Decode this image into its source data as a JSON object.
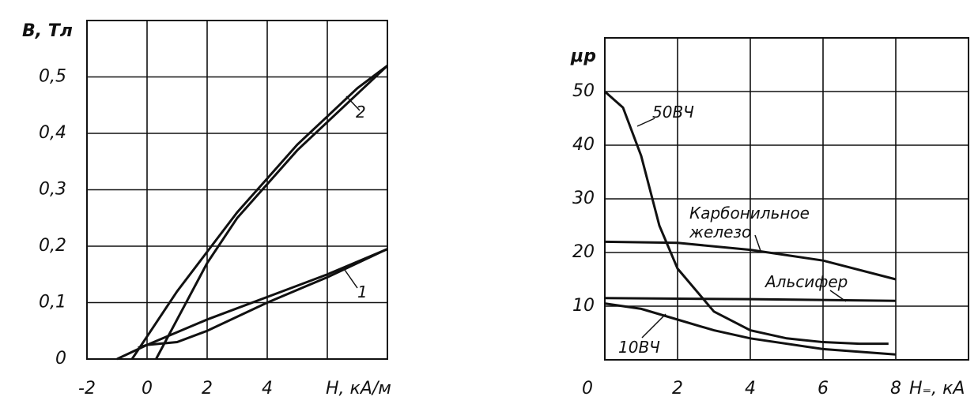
{
  "chart_data": [
    {
      "type": "line",
      "y_label": "B, Тл",
      "x_label": "H, кА/м",
      "xlim": [
        -2,
        8
      ],
      "ylim": [
        0,
        0.6
      ],
      "xticks": [
        -2,
        0,
        2,
        4
      ],
      "xgrid": [
        -2,
        0,
        2,
        4,
        6,
        8
      ],
      "yticks": [
        0,
        {
          "value": 0.1,
          "label": "0,1"
        },
        {
          "value": 0.2,
          "label": "0,2"
        },
        {
          "value": 0.3,
          "label": "0,3"
        },
        {
          "value": 0.4,
          "label": "0,4"
        },
        {
          "value": 0.5,
          "label": "0,5"
        }
      ],
      "grid": true,
      "series": [
        {
          "name": "2",
          "color": "#111111",
          "x": [
            -0.5,
            0,
            1,
            2,
            3,
            4,
            5,
            6,
            7,
            8
          ],
          "values": [
            0,
            0.04,
            0.12,
            0.19,
            0.26,
            0.32,
            0.38,
            0.43,
            0.48,
            0.52
          ]
        },
        {
          "color": "#111111",
          "x": [
            0.3,
            1,
            2,
            3,
            4,
            5,
            6,
            7,
            8
          ],
          "values": [
            0,
            0.07,
            0.17,
            0.25,
            0.31,
            0.37,
            0.42,
            0.47,
            0.52
          ]
        },
        {
          "name": "1",
          "color": "#111111",
          "x": [
            -1,
            0,
            2,
            4,
            6,
            8
          ],
          "values": [
            0,
            0.025,
            0.07,
            0.11,
            0.15,
            0.195
          ]
        },
        {
          "color": "#111111",
          "x": [
            -0.3,
            0,
            1,
            2,
            4,
            6,
            8
          ],
          "values": [
            0.02,
            0.025,
            0.03,
            0.05,
            0.1,
            0.145,
            0.195
          ]
        }
      ]
    },
    {
      "type": "line",
      "y_label": "μp",
      "x_label": "H₌, кА",
      "xlim": [
        0,
        10
      ],
      "ylim": [
        0,
        60
      ],
      "xticks": [
        0,
        2,
        4,
        6,
        8
      ],
      "xgrid": [
        0,
        2,
        4,
        6,
        8,
        10
      ],
      "yticks": [
        10,
        20,
        30,
        40,
        50
      ],
      "grid": true,
      "series": [
        {
          "name": "50ВЧ",
          "color": "#111111",
          "x": [
            0,
            0.5,
            1,
            1.5,
            2,
            3,
            4,
            5,
            6,
            7,
            7.8
          ],
          "values": [
            50,
            47,
            38,
            25,
            17,
            9,
            5.5,
            4,
            3.3,
            3,
            3
          ]
        },
        {
          "name": "Карбонильное железо",
          "color": "#111111",
          "x": [
            0,
            2,
            4,
            6,
            8
          ],
          "values": [
            22,
            21.8,
            20.5,
            18.5,
            15
          ]
        },
        {
          "name": "Альсифер",
          "color": "#111111",
          "x": [
            0,
            4,
            8
          ],
          "values": [
            11.5,
            11.3,
            11
          ]
        },
        {
          "name": "10ВЧ",
          "color": "#111111",
          "x": [
            0,
            1,
            2,
            3,
            4,
            6,
            8
          ],
          "values": [
            10.5,
            9.5,
            7.5,
            5.5,
            4,
            2,
            1
          ]
        }
      ]
    }
  ]
}
